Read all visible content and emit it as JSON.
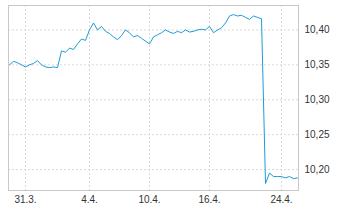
{
  "chart_data": {
    "type": "line",
    "categories": [
      null,
      null,
      null,
      null,
      "31.3.",
      null,
      null,
      null,
      null,
      null,
      null,
      null,
      null,
      null,
      null,
      null,
      null,
      null,
      null,
      null,
      "4.4.",
      null,
      null,
      null,
      null,
      null,
      null,
      null,
      null,
      null,
      null,
      null,
      null,
      null,
      null,
      "10.4.",
      null,
      null,
      null,
      null,
      null,
      null,
      null,
      null,
      null,
      null,
      null,
      null,
      null,
      null,
      "16.4.",
      null,
      null,
      null,
      null,
      null,
      null,
      null,
      null,
      null,
      null,
      null,
      null,
      null,
      null,
      null,
      null,
      null,
      "24.4.",
      null,
      null,
      null,
      null
    ],
    "values": [
      10.35,
      10.355,
      10.353,
      10.35,
      10.347,
      10.35,
      10.352,
      10.356,
      10.35,
      10.347,
      10.346,
      10.347,
      10.346,
      10.37,
      10.368,
      10.374,
      10.372,
      10.38,
      10.387,
      10.385,
      10.4,
      10.41,
      10.4,
      10.405,
      10.398,
      10.395,
      10.39,
      10.386,
      10.392,
      10.4,
      10.396,
      10.39,
      10.392,
      10.388,
      10.384,
      10.38,
      10.39,
      10.393,
      10.396,
      10.4,
      10.397,
      10.395,
      10.398,
      10.396,
      10.4,
      10.397,
      10.398,
      10.4,
      10.401,
      10.4,
      10.405,
      10.396,
      10.4,
      10.403,
      10.41,
      10.42,
      10.422,
      10.42,
      10.421,
      10.418,
      10.415,
      10.42,
      10.418,
      10.416,
      10.18,
      10.195,
      10.19,
      10.19,
      10.19,
      10.188,
      10.19,
      10.187,
      10.188
    ],
    "color": "#1e9bd7",
    "ylim": [
      10.17,
      10.435
    ],
    "yticks": [
      {
        "value": 10.2,
        "label": "10,20"
      },
      {
        "value": 10.25,
        "label": "10,25"
      },
      {
        "value": 10.3,
        "label": "10,30"
      },
      {
        "value": 10.35,
        "label": "10,35"
      },
      {
        "value": 10.4,
        "label": "10,40"
      }
    ],
    "grid": true
  }
}
